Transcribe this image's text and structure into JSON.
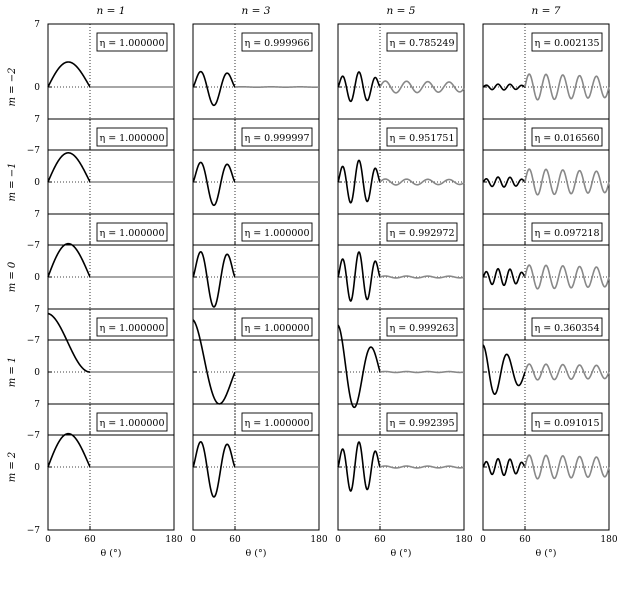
{
  "chart_data": {
    "type": "line",
    "column_labels": [
      "n = 1",
      "n = 3",
      "n = 5",
      "n = 7"
    ],
    "row_labels": [
      "m = −2",
      "m = −1",
      "m = 0",
      "m = 1",
      "m = 2"
    ],
    "x_ticks": [
      "0",
      "60",
      "180"
    ],
    "y_ticks": [
      "7",
      "0",
      "−7"
    ],
    "xlim": [
      0,
      180
    ],
    "ylim": [
      -7,
      7
    ],
    "xlabel": "θ (°)",
    "dotted_vertical_at": 60,
    "n_values": [
      1,
      3,
      5,
      7
    ],
    "m_values": [
      -2,
      -1,
      0,
      1,
      2
    ],
    "series_colors": {
      "inside": "#000000",
      "outside": "#888888"
    },
    "panels": [
      [
        {
          "eta": "η = 1.000000",
          "amp": 3.0,
          "tail": 0.0
        },
        {
          "eta": "η = 0.999966",
          "amp": 2.2,
          "tail": 0.02
        },
        {
          "eta": "η = 0.785249",
          "amp": 1.8,
          "tail": 0.6
        },
        {
          "eta": "η = 0.002135",
          "amp": 0.35,
          "tail": 1.3
        }
      ],
      [
        {
          "eta": "η = 1.000000",
          "amp": 3.5,
          "tail": 0.0
        },
        {
          "eta": "η = 0.999997",
          "amp": 2.8,
          "tail": 0.0
        },
        {
          "eta": "η = 0.951751",
          "amp": 2.6,
          "tail": 0.3
        },
        {
          "eta": "η = 0.016560",
          "amp": 0.6,
          "tail": 1.3
        }
      ],
      [
        {
          "eta": "η = 1.000000",
          "amp": 4.0,
          "tail": 0.0
        },
        {
          "eta": "η = 1.000000",
          "amp": 3.6,
          "tail": 0.0
        },
        {
          "eta": "η = 0.992972",
          "amp": 3.0,
          "tail": 0.1
        },
        {
          "eta": "η = 0.097218",
          "amp": 1.0,
          "tail": 1.2
        }
      ],
      [
        {
          "eta": "η = 1.000000",
          "amp": 6.5,
          "tail": 0.0
        },
        {
          "eta": "η = 1.000000",
          "amp": 5.8,
          "tail": 0.0
        },
        {
          "eta": "η = 0.999263",
          "amp": 5.2,
          "tail": 0.05
        },
        {
          "eta": "η = 0.360354",
          "amp": 3.0,
          "tail": 0.8
        }
      ],
      [
        {
          "eta": "η = 1.000000",
          "amp": 4.0,
          "tail": 0.0
        },
        {
          "eta": "η = 1.000000",
          "amp": 3.6,
          "tail": 0.0
        },
        {
          "eta": "η = 0.992395",
          "amp": 3.0,
          "tail": 0.1
        },
        {
          "eta": "η = 0.091015",
          "amp": 1.0,
          "tail": 1.2
        }
      ]
    ]
  }
}
